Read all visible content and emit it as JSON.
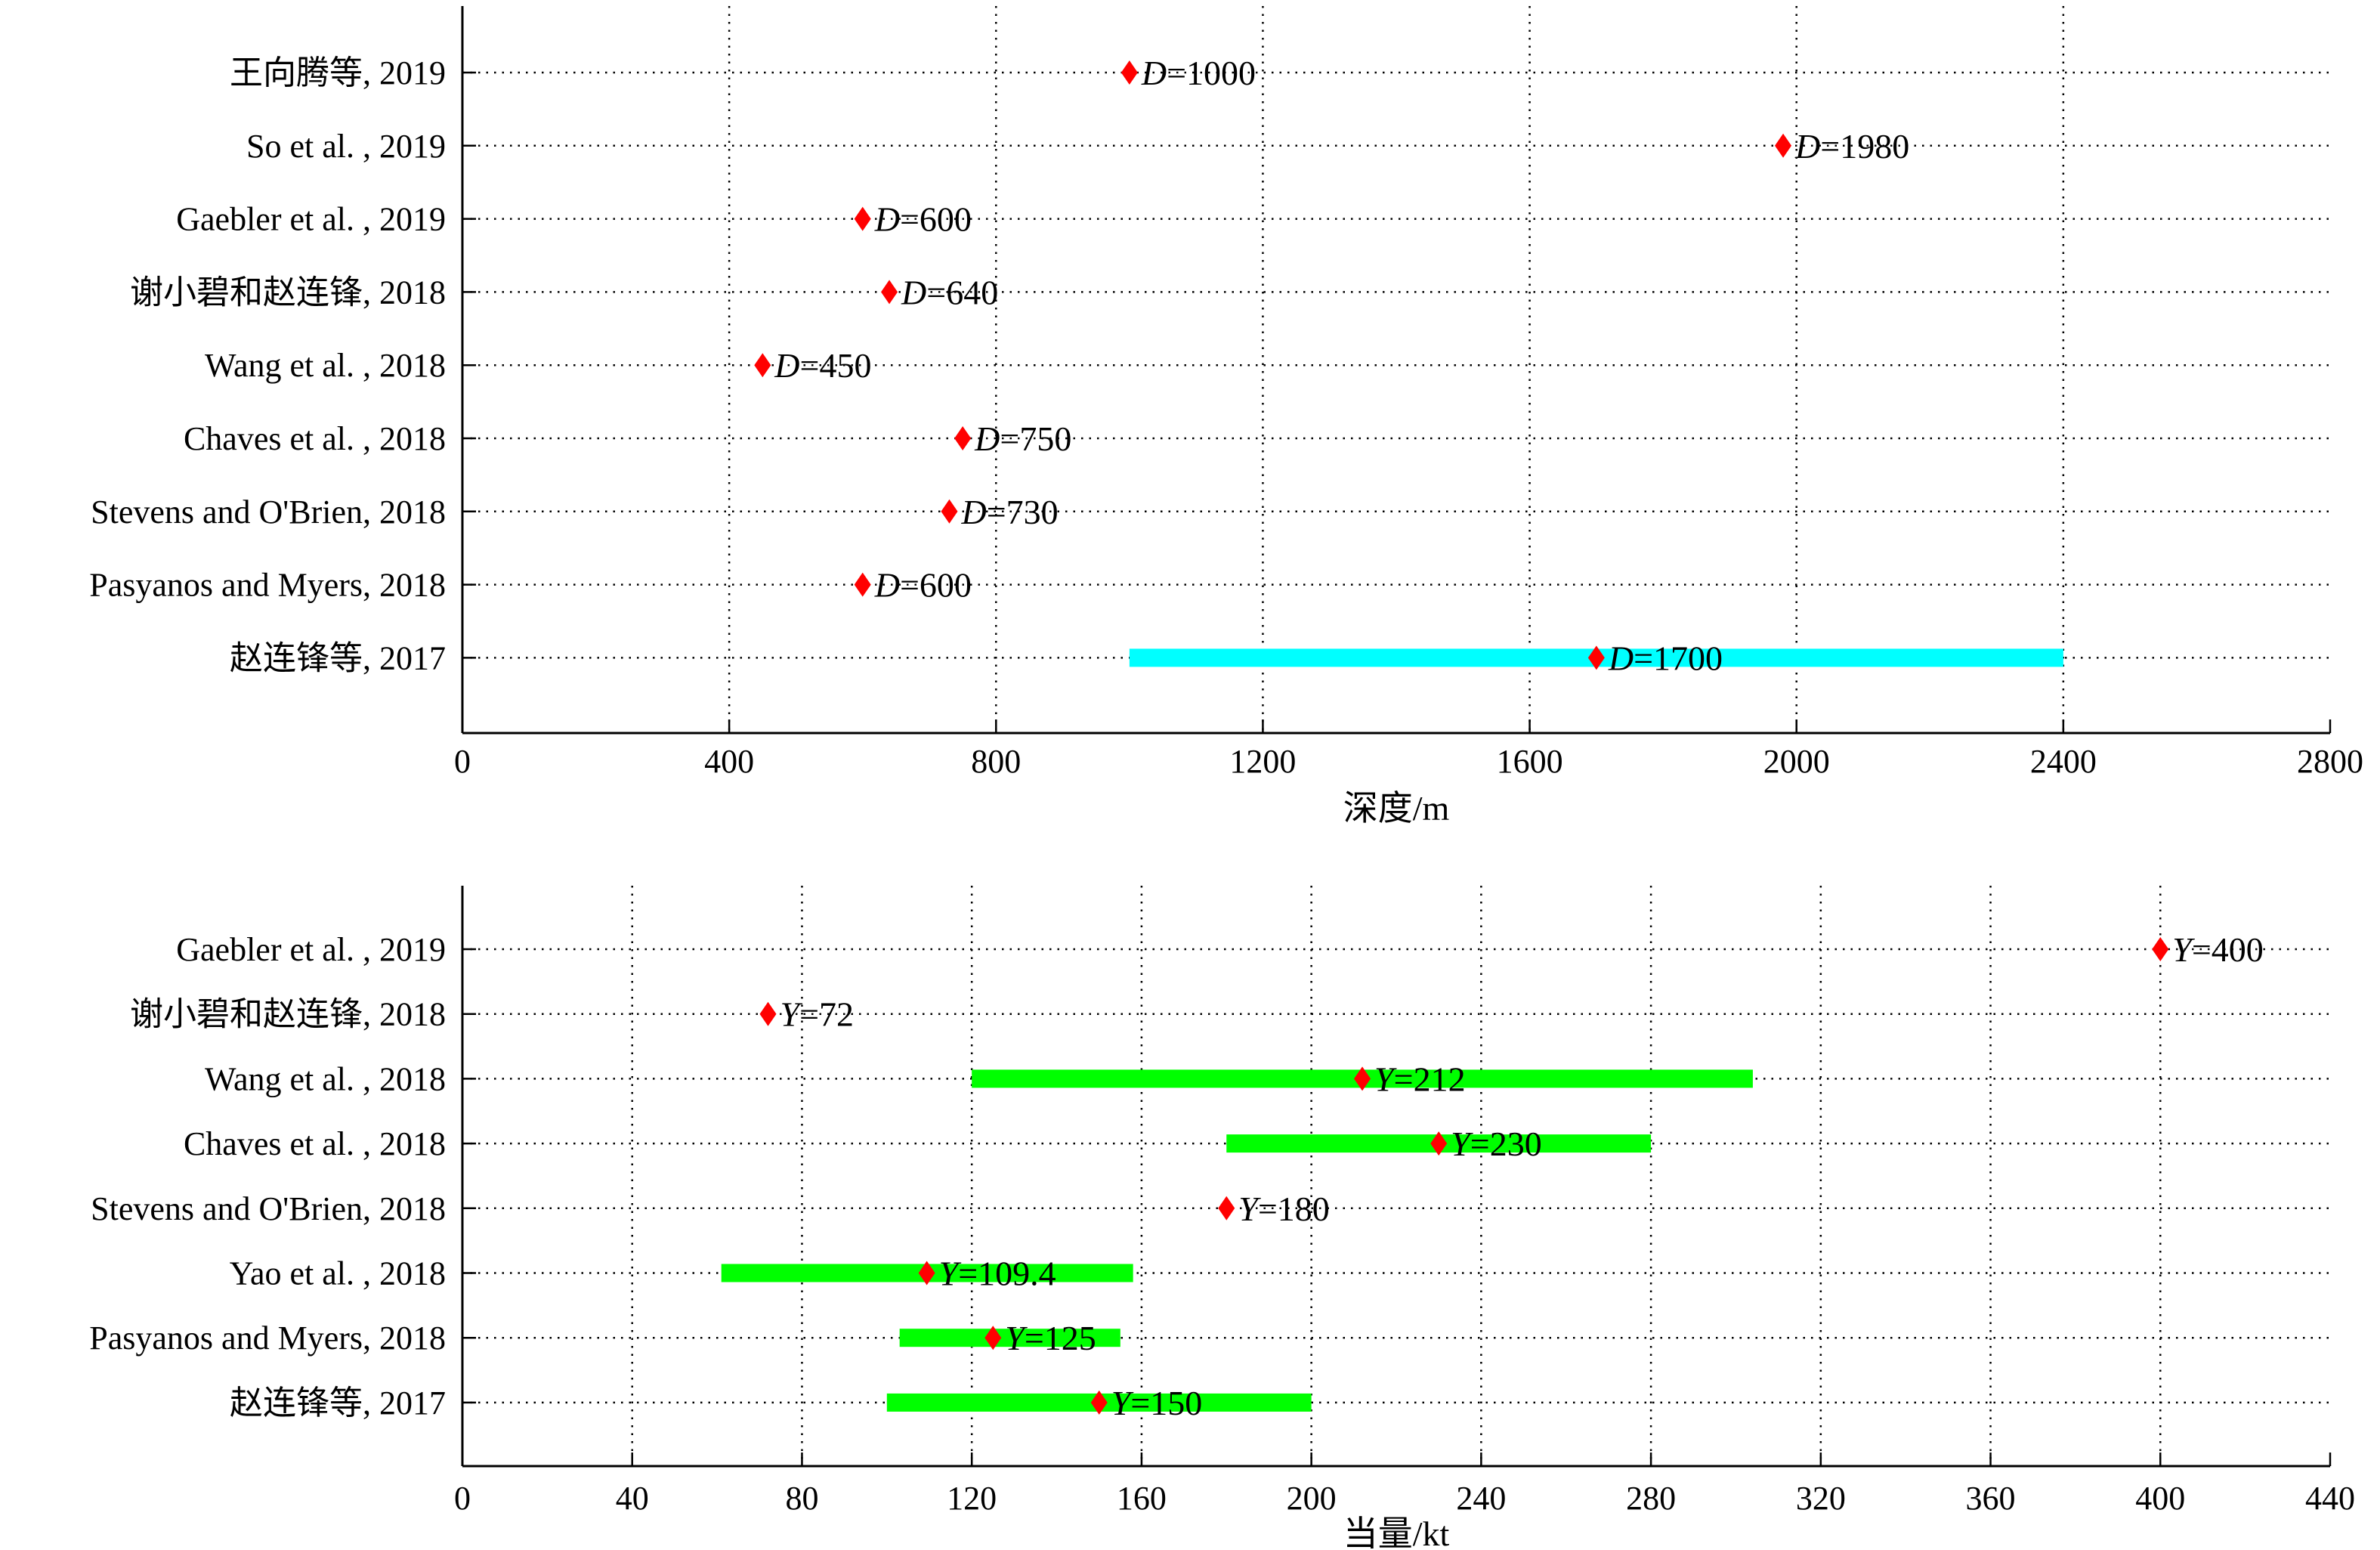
{
  "chart_data": [
    {
      "type": "range-dot",
      "xlabel": "深度/m",
      "xlim": [
        0,
        2800
      ],
      "xticks": [
        0,
        400,
        800,
        1200,
        1600,
        2000,
        2400,
        2800
      ],
      "grid": true,
      "point_color": "#ff0000",
      "range_color": "#00ffff",
      "rows": [
        {
          "label": "王向腾等, 2019",
          "value": 1000,
          "text": "D=1000"
        },
        {
          "label": "So et al. , 2019",
          "value": 1980,
          "text": "D=1980"
        },
        {
          "label": "Gaebler et al. , 2019",
          "value": 600,
          "text": "D=600"
        },
        {
          "label": "谢小碧和赵连锋, 2018",
          "value": 640,
          "text": "D=640"
        },
        {
          "label": "Wang et al. , 2018",
          "value": 450,
          "text": "D=450"
        },
        {
          "label": "Chaves et al. , 2018",
          "value": 750,
          "text": "D=750"
        },
        {
          "label": "Stevens and O'Brien, 2018",
          "value": 730,
          "text": "D=730"
        },
        {
          "label": "Pasyanos and Myers, 2018",
          "value": 600,
          "text": "D=600"
        },
        {
          "label": "赵连锋等, 2017",
          "value": 1700,
          "text": "D=1700",
          "range": [
            1000,
            2400
          ]
        }
      ]
    },
    {
      "type": "range-dot",
      "xlabel": "当量/kt",
      "xlim": [
        0,
        440
      ],
      "xticks": [
        0,
        40,
        80,
        120,
        160,
        200,
        240,
        280,
        320,
        360,
        400,
        440
      ],
      "grid": true,
      "point_color": "#ff0000",
      "range_color": "#00ff00",
      "rows": [
        {
          "label": "Gaebler et al. , 2019",
          "value": 400,
          "text": "Y=400"
        },
        {
          "label": "谢小碧和赵连锋, 2018",
          "value": 72,
          "text": "Y=72"
        },
        {
          "label": "Wang et al. , 2018",
          "value": 212,
          "text": "Y=212",
          "range": [
            120,
            304
          ]
        },
        {
          "label": "Chaves et al. , 2018",
          "value": 230,
          "text": "Y=230",
          "range": [
            180,
            280
          ]
        },
        {
          "label": "Stevens and O'Brien, 2018",
          "value": 180,
          "text": "Y=180"
        },
        {
          "label": "Yao et al. , 2018",
          "value": 109.4,
          "text": "Y=109.4",
          "range": [
            61,
            158
          ]
        },
        {
          "label": "Pasyanos and Myers, 2018",
          "value": 125,
          "text": "Y=125",
          "range": [
            103,
            155
          ]
        },
        {
          "label": "赵连锋等, 2017",
          "value": 150,
          "text": "Y=150",
          "range": [
            100,
            200
          ]
        }
      ]
    }
  ]
}
